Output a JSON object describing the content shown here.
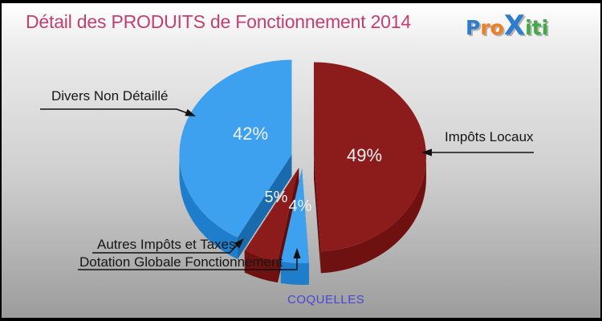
{
  "header": {
    "title": "Détail des PRODUITS de Fonctionnement 2014",
    "title_color": "#C23F6E"
  },
  "logo": {
    "name": "Proxiti",
    "letters": [
      {
        "ch": "P",
        "color": "#2E7CCE",
        "big": false
      },
      {
        "ch": "r",
        "color": "#EF7F1C",
        "big": false
      },
      {
        "ch": "o",
        "color": "#EF7F1C",
        "big": false
      },
      {
        "ch": "X",
        "color": "#2E7CCE",
        "big": true
      },
      {
        "ch": "i",
        "color": "#43A846",
        "big": false
      },
      {
        "ch": "t",
        "color": "#43A846",
        "big": false
      },
      {
        "ch": "i",
        "color": "#43A846",
        "big": false
      }
    ]
  },
  "footer": {
    "municipality": "COQUELLES",
    "color": "#4747D6"
  },
  "chart_data": {
    "type": "pie",
    "style": "3d-exploded",
    "title": "Détail des PRODUITS de Fonctionnement 2014",
    "unit": "percent",
    "start": "top",
    "direction": "clockwise",
    "pct_color": "#f2f2f2",
    "slices": [
      {
        "label": "Impôts Locaux",
        "value": 49,
        "pct_label": "49%",
        "color": "#8C1C1C",
        "side_color": "#701111"
      },
      {
        "label": "Dotation Globale Fonctionnement",
        "value": 4,
        "pct_label": "4%",
        "color": "#3DA1F0",
        "side_color": "#1F7ECC"
      },
      {
        "label": "Autres Impôts et Taxes",
        "value": 5,
        "pct_label": "5%",
        "color": "#8C1C1C",
        "side_color": "#701111"
      },
      {
        "label": "Divers Non Détaillé",
        "value": 42,
        "pct_label": "42%",
        "color": "#3DA1F0",
        "side_color": "#1F7ECC"
      }
    ]
  }
}
